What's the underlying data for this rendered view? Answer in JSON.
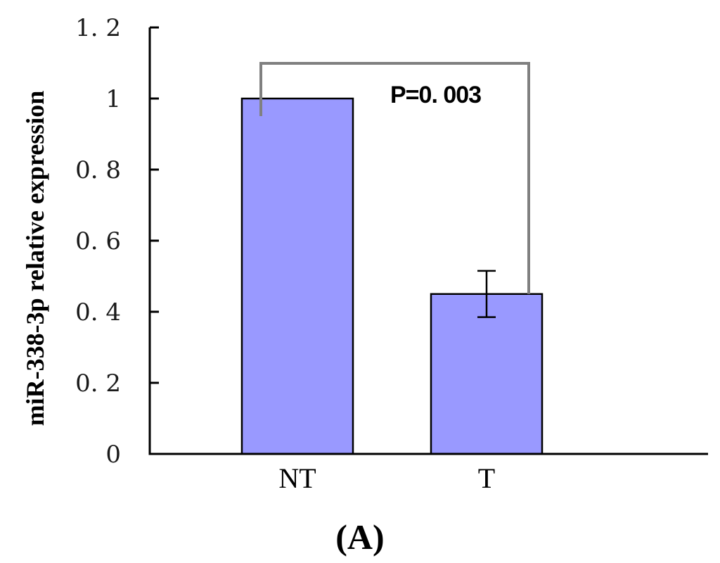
{
  "chart_data": {
    "type": "bar",
    "categories": [
      "NT",
      "T"
    ],
    "values": [
      1.0,
      0.45
    ],
    "error": [
      null,
      0.065
    ],
    "ylabel": "miR-338-3p relative expression",
    "xlabel": "",
    "ylim": [
      0,
      1.2
    ],
    "yticks": [
      0,
      0.2,
      0.4,
      0.6,
      0.8,
      1,
      1.2
    ],
    "ytick_labels": [
      "0",
      "0. 2",
      "0. 4",
      "0. 6",
      "0. 8",
      "1",
      "1. 2"
    ],
    "annotation": "P=0. 003",
    "panel_label": "(A)",
    "grid": false,
    "bar_color": "#9999ff",
    "bar_edge_color": "#000000",
    "bracket_color": "#808080"
  }
}
